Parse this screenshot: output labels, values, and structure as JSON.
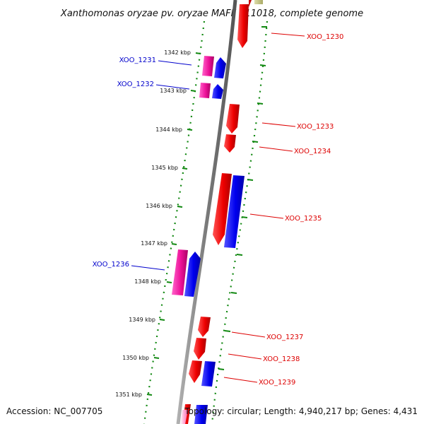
{
  "title": "Xanthomonas oryzae pv. oryzae MAFF 311018, complete genome",
  "footer": {
    "accession": "Accession: NC_007705",
    "topology": "Topology: circular; Length: 4,940,217 bp; Genes: 4,431"
  },
  "colors": {
    "forward_strand": "#ee0000",
    "reverse_strand": "#0000ee",
    "forward_label": "#dd0000",
    "reverse_label": "#0000cc",
    "pink_gene": "#ee1199",
    "backbone": "#808080",
    "tick": "#118811"
  },
  "kbp_ticks": [
    "1342 kbp",
    "1343 kbp",
    "1344 kbp",
    "1345 kbp",
    "1346 kbp",
    "1347 kbp",
    "1348 kbp",
    "1349 kbp",
    "1350 kbp",
    "1351 kbp"
  ],
  "genes": [
    {
      "id": "XOO_1230",
      "side": "right"
    },
    {
      "id": "XOO_1231",
      "side": "left"
    },
    {
      "id": "XOO_1232",
      "side": "left"
    },
    {
      "id": "XOO_1233",
      "side": "right"
    },
    {
      "id": "XOO_1234",
      "side": "right"
    },
    {
      "id": "XOO_1235",
      "side": "right"
    },
    {
      "id": "XOO_1236",
      "side": "left"
    },
    {
      "id": "XOO_1237",
      "side": "right"
    },
    {
      "id": "XOO_1238",
      "side": "right"
    },
    {
      "id": "XOO_1239",
      "side": "right"
    }
  ]
}
